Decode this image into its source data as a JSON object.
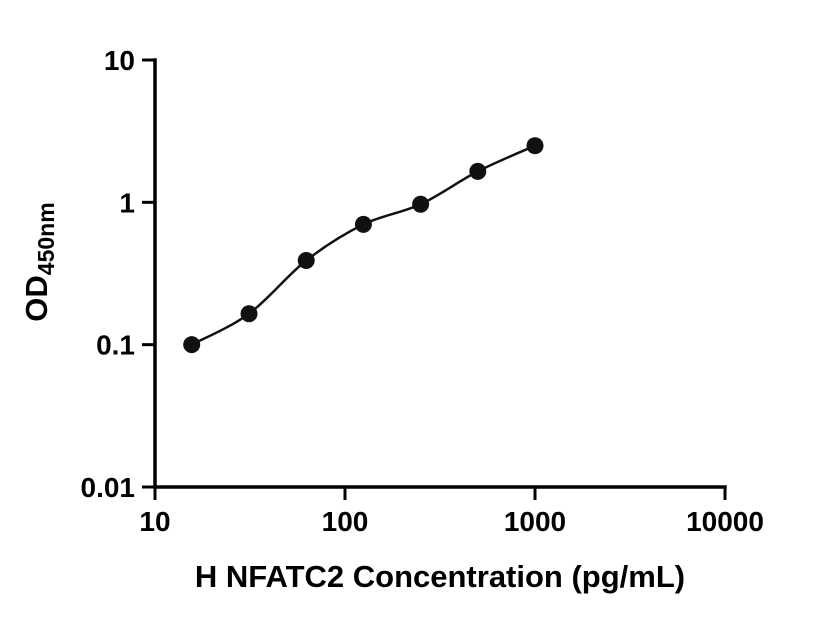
{
  "chart": {
    "xlabel": "H NFATC2 Concentration (pg/mL)",
    "ylabel_main": "OD",
    "ylabel_sub": "450nm"
  },
  "chart_data": {
    "type": "scatter",
    "title": "",
    "xlabel": "H NFATC2 Concentration (pg/mL)",
    "ylabel": "OD450nm",
    "x": [
      15.6,
      31.25,
      62.5,
      125,
      250,
      500,
      1000
    ],
    "y": [
      0.1,
      0.165,
      0.39,
      0.7,
      0.97,
      1.65,
      2.5
    ],
    "fit_line": true,
    "x_scale": "log",
    "y_scale": "log",
    "xlim": [
      10,
      10000
    ],
    "ylim": [
      0.01,
      10
    ],
    "x_ticks": [
      10,
      100,
      1000,
      10000
    ],
    "x_tick_labels": [
      "10",
      "100",
      "1000",
      "10000"
    ],
    "y_ticks": [
      10,
      1,
      0.1,
      0.01
    ],
    "y_tick_labels": [
      "10",
      "1",
      "0.1",
      "0.01"
    ],
    "grid": false,
    "legend": false,
    "marker_color": "#111111",
    "line_color": "#111111",
    "axis_color": "#000000",
    "marker_radius": 8.5
  }
}
